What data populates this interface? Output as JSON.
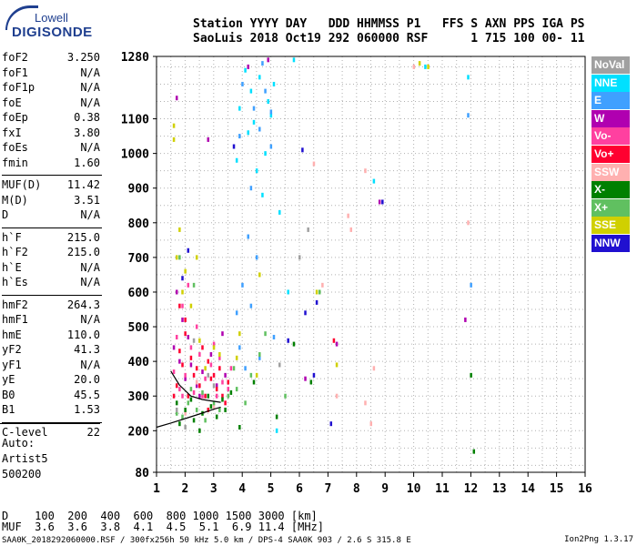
{
  "logo": {
    "top": "Lowell",
    "main": "DIGISONDE"
  },
  "header": {
    "line1": "Station YYYY DAY   DDD HHMMSS P1   FFS S AXN PPS IGA PS",
    "line2": "SaoLuis 2018 Oct19 292 060000 RSF      1 715 100 00- 11"
  },
  "params": [
    {
      "name": "foF2",
      "value": "3.250"
    },
    {
      "name": "foF1",
      "value": "N/A"
    },
    {
      "name": "foF1p",
      "value": "N/A"
    },
    {
      "name": "foE",
      "value": "N/A"
    },
    {
      "name": "foEp",
      "value": "0.38"
    },
    {
      "name": "fxI",
      "value": "3.80"
    },
    {
      "name": "foEs",
      "value": "N/A"
    },
    {
      "name": "fmin",
      "value": "1.60"
    },
    {
      "name": "MUF(D)",
      "value": "11.42"
    },
    {
      "name": "M(D)",
      "value": "3.51"
    },
    {
      "name": "D",
      "value": "N/A"
    },
    {
      "name": "h`F",
      "value": "215.0"
    },
    {
      "name": "h`F2",
      "value": "215.0"
    },
    {
      "name": "h`E",
      "value": "N/A"
    },
    {
      "name": "h`Es",
      "value": "N/A"
    },
    {
      "name": "hmF2",
      "value": "264.3"
    },
    {
      "name": "hmF1",
      "value": "N/A"
    },
    {
      "name": "hmE",
      "value": "110.0"
    },
    {
      "name": "yF2",
      "value": "41.3"
    },
    {
      "name": "yF1",
      "value": "N/A"
    },
    {
      "name": "yE",
      "value": "20.0"
    },
    {
      "name": "B0",
      "value": "45.5"
    },
    {
      "name": "B1",
      "value": "1.53"
    },
    {
      "name": "C-level",
      "value": "22"
    }
  ],
  "auto": {
    "label": "Auto:",
    "artist": "Artist5",
    "code": "500200"
  },
  "legend": [
    {
      "label": "NoVal",
      "color": "#a0a0a0"
    },
    {
      "label": "NNE",
      "color": "#00e0ff"
    },
    {
      "label": "E",
      "color": "#3fa0ff"
    },
    {
      "label": "W",
      "color": "#b000b0"
    },
    {
      "label": "Vo-",
      "color": "#ff40a0"
    },
    {
      "label": "Vo+",
      "color": "#ff0030"
    },
    {
      "label": "SSW",
      "color": "#ffb0b0"
    },
    {
      "label": "X-",
      "color": "#008000"
    },
    {
      "label": "X+",
      "color": "#60c060"
    },
    {
      "label": "SSE",
      "color": "#d0d000"
    },
    {
      "label": "NNW",
      "color": "#2010d0"
    }
  ],
  "bottom": {
    "d_row": "D    100  200  400  600  800 1000 1500 3000 [km]",
    "muf_row": "MUF  3.6  3.6  3.8  4.1  4.5  5.1  6.9 11.4 [MHz]",
    "file_info": "SAA0K_2018292060000.RSF / 300fx256h 50 kHz 5.0 km / DPS-4 SAA0K 903 / 2.6 S 315.8 E",
    "version": "Ion2Png 1.3.17"
  },
  "chart_data": {
    "type": "scatter",
    "title": "",
    "xlabel": "",
    "ylabel": "",
    "xlim": [
      1,
      16
    ],
    "ylim": [
      80,
      1280
    ],
    "x_ticks": [
      "1",
      "2",
      "3",
      "4",
      "5",
      "6",
      "7",
      "8",
      "9",
      "10",
      "11",
      "12",
      "13",
      "14",
      "15",
      "16"
    ],
    "y_ticks": [
      "80",
      "200",
      "300",
      "400",
      "500",
      "600",
      "700",
      "800",
      "900",
      "1000",
      "1100",
      "1280"
    ],
    "y_tick_values": [
      80,
      200,
      300,
      400,
      500,
      600,
      700,
      800,
      900,
      1000,
      1100,
      1280
    ],
    "grid": true,
    "series": [
      {
        "name": "NNE",
        "points": [
          [
            4.1,
            1240
          ],
          [
            4.3,
            1180
          ],
          [
            4.6,
            1220
          ],
          [
            4.9,
            1150
          ],
          [
            5.0,
            1110
          ],
          [
            4.2,
            1060
          ],
          [
            4.8,
            1000
          ],
          [
            3.9,
            1130
          ],
          [
            4.5,
            950
          ],
          [
            5.1,
            1200
          ],
          [
            4.7,
            880
          ],
          [
            5.3,
            830
          ],
          [
            8.6,
            920
          ],
          [
            10.4,
            1250
          ],
          [
            11.9,
            1220
          ],
          [
            5.6,
            600
          ],
          [
            5.2,
            200
          ],
          [
            3.8,
            980
          ],
          [
            4.4,
            1090
          ],
          [
            5.8,
            1270
          ]
        ]
      },
      {
        "name": "E",
        "points": [
          [
            4.0,
            1200
          ],
          [
            4.4,
            1130
          ],
          [
            4.8,
            1180
          ],
          [
            3.9,
            1050
          ],
          [
            4.6,
            1070
          ],
          [
            5.0,
            1020
          ],
          [
            4.3,
            900
          ],
          [
            4.2,
            760
          ],
          [
            4.0,
            620
          ],
          [
            4.3,
            560
          ],
          [
            3.8,
            540
          ],
          [
            4.5,
            700
          ],
          [
            5.1,
            470
          ],
          [
            3.9,
            440
          ],
          [
            4.1,
            380
          ],
          [
            4.6,
            410
          ],
          [
            12.0,
            620
          ],
          [
            11.9,
            1110
          ],
          [
            4.7,
            1260
          ],
          [
            5.0,
            1120
          ]
        ]
      },
      {
        "name": "W",
        "points": [
          [
            1.8,
            400
          ],
          [
            2.0,
            350
          ],
          [
            2.2,
            390
          ],
          [
            2.4,
            330
          ],
          [
            1.7,
            600
          ],
          [
            2.6,
            370
          ],
          [
            2.9,
            420
          ],
          [
            3.1,
            330
          ],
          [
            1.9,
            520
          ],
          [
            2.1,
            470
          ],
          [
            1.7,
            1160
          ],
          [
            2.8,
            1040
          ],
          [
            4.2,
            1250
          ],
          [
            4.9,
            1270
          ],
          [
            8.8,
            860
          ],
          [
            11.8,
            520
          ],
          [
            7.3,
            450
          ],
          [
            6.2,
            350
          ],
          [
            2.5,
            300
          ],
          [
            3.4,
            360
          ],
          [
            1.6,
            440
          ],
          [
            3.3,
            480
          ]
        ]
      },
      {
        "name": "Vo-",
        "points": [
          [
            1.8,
            320
          ],
          [
            2.0,
            360
          ],
          [
            2.3,
            310
          ],
          [
            2.5,
            420
          ],
          [
            2.7,
            350
          ],
          [
            2.9,
            390
          ],
          [
            3.1,
            300
          ],
          [
            3.3,
            340
          ],
          [
            3.5,
            320
          ],
          [
            1.7,
            470
          ],
          [
            1.9,
            560
          ],
          [
            2.2,
            440
          ],
          [
            3.0,
            450
          ],
          [
            2.4,
            500
          ],
          [
            2.1,
            620
          ],
          [
            1.6,
            370
          ],
          [
            3.6,
            380
          ],
          [
            2.6,
            300
          ],
          [
            1.9,
            300
          ],
          [
            3.2,
            410
          ]
        ]
      },
      {
        "name": "Vo+",
        "points": [
          [
            1.7,
            330
          ],
          [
            1.9,
            390
          ],
          [
            2.1,
            300
          ],
          [
            2.3,
            360
          ],
          [
            2.5,
            330
          ],
          [
            2.7,
            300
          ],
          [
            2.9,
            350
          ],
          [
            3.1,
            320
          ],
          [
            3.3,
            300
          ],
          [
            3.5,
            340
          ],
          [
            1.8,
            430
          ],
          [
            2.0,
            480
          ],
          [
            2.2,
            410
          ],
          [
            2.4,
            380
          ],
          [
            2.6,
            440
          ],
          [
            2.8,
            400
          ],
          [
            3.0,
            360
          ],
          [
            3.2,
            380
          ],
          [
            1.8,
            560
          ],
          [
            2.0,
            520
          ],
          [
            7.2,
            460
          ],
          [
            3.4,
            280
          ],
          [
            2.8,
            260
          ],
          [
            1.6,
            300
          ]
        ]
      },
      {
        "name": "SSW",
        "points": [
          [
            7.7,
            820
          ],
          [
            8.3,
            950
          ],
          [
            8.6,
            380
          ],
          [
            10.0,
            1250
          ],
          [
            11.9,
            800
          ],
          [
            6.5,
            970
          ],
          [
            7.8,
            780
          ],
          [
            8.3,
            280
          ],
          [
            8.5,
            220
          ],
          [
            7.3,
            300
          ],
          [
            6.8,
            620
          ],
          [
            2.4,
            340
          ],
          [
            3.0,
            270
          ],
          [
            2.0,
            250
          ]
        ]
      },
      {
        "name": "X-",
        "points": [
          [
            1.8,
            220
          ],
          [
            2.0,
            260
          ],
          [
            2.3,
            230
          ],
          [
            2.6,
            250
          ],
          [
            2.9,
            270
          ],
          [
            3.1,
            240
          ],
          [
            3.4,
            260
          ],
          [
            1.7,
            280
          ],
          [
            2.2,
            290
          ],
          [
            2.8,
            300
          ],
          [
            3.3,
            290
          ],
          [
            3.6,
            310
          ],
          [
            4.4,
            340
          ],
          [
            5.8,
            450
          ],
          [
            6.4,
            340
          ],
          [
            5.2,
            240
          ],
          [
            12.1,
            140
          ],
          [
            12.0,
            360
          ],
          [
            3.9,
            210
          ],
          [
            2.5,
            200
          ]
        ]
      },
      {
        "name": "X+",
        "points": [
          [
            1.9,
            240
          ],
          [
            2.1,
            280
          ],
          [
            2.4,
            260
          ],
          [
            2.7,
            230
          ],
          [
            3.0,
            280
          ],
          [
            3.2,
            260
          ],
          [
            3.5,
            300
          ],
          [
            3.8,
            320
          ],
          [
            1.7,
            250
          ],
          [
            2.2,
            320
          ],
          [
            2.6,
            310
          ],
          [
            4.1,
            280
          ],
          [
            5.5,
            300
          ],
          [
            6.7,
            600
          ],
          [
            4.8,
            480
          ],
          [
            4.6,
            420
          ],
          [
            1.8,
            700
          ],
          [
            2.3,
            620
          ],
          [
            3.7,
            380
          ],
          [
            4.3,
            360
          ]
        ]
      },
      {
        "name": "SSE",
        "points": [
          [
            1.6,
            1080
          ],
          [
            1.8,
            780
          ],
          [
            2.0,
            660
          ],
          [
            1.7,
            700
          ],
          [
            2.2,
            560
          ],
          [
            1.9,
            600
          ],
          [
            2.5,
            460
          ],
          [
            3.0,
            440
          ],
          [
            2.7,
            380
          ],
          [
            3.2,
            420
          ],
          [
            3.8,
            410
          ],
          [
            4.5,
            360
          ],
          [
            6.6,
            600
          ],
          [
            7.3,
            390
          ],
          [
            10.2,
            1260
          ],
          [
            10.5,
            1250
          ],
          [
            1.6,
            1040
          ],
          [
            4.6,
            650
          ],
          [
            3.9,
            480
          ],
          [
            2.4,
            700
          ]
        ]
      },
      {
        "name": "NNW",
        "points": [
          [
            6.1,
            1010
          ],
          [
            6.2,
            540
          ],
          [
            6.6,
            570
          ],
          [
            7.1,
            220
          ],
          [
            8.9,
            860
          ],
          [
            3.7,
            1020
          ],
          [
            5.6,
            460
          ],
          [
            6.5,
            360
          ],
          [
            1.9,
            640
          ],
          [
            2.1,
            720
          ]
        ]
      },
      {
        "name": "NoVal",
        "points": [
          [
            1.7,
            260
          ],
          [
            2.0,
            210
          ],
          [
            3.0,
            330
          ],
          [
            2.8,
            360
          ],
          [
            2.3,
            460
          ],
          [
            5.3,
            390
          ],
          [
            6.0,
            700
          ],
          [
            6.3,
            780
          ]
        ]
      }
    ],
    "trace": [
      [
        1.0,
        210
      ],
      [
        1.5,
        222
      ],
      [
        2.0,
        235
      ],
      [
        2.5,
        248
      ],
      [
        3.0,
        262
      ],
      [
        3.25,
        268
      ]
    ],
    "trace_upper": [
      [
        1.5,
        372
      ],
      [
        1.8,
        332
      ],
      [
        2.2,
        300
      ],
      [
        2.6,
        290
      ],
      [
        2.9,
        286
      ],
      [
        3.25,
        282
      ]
    ]
  }
}
